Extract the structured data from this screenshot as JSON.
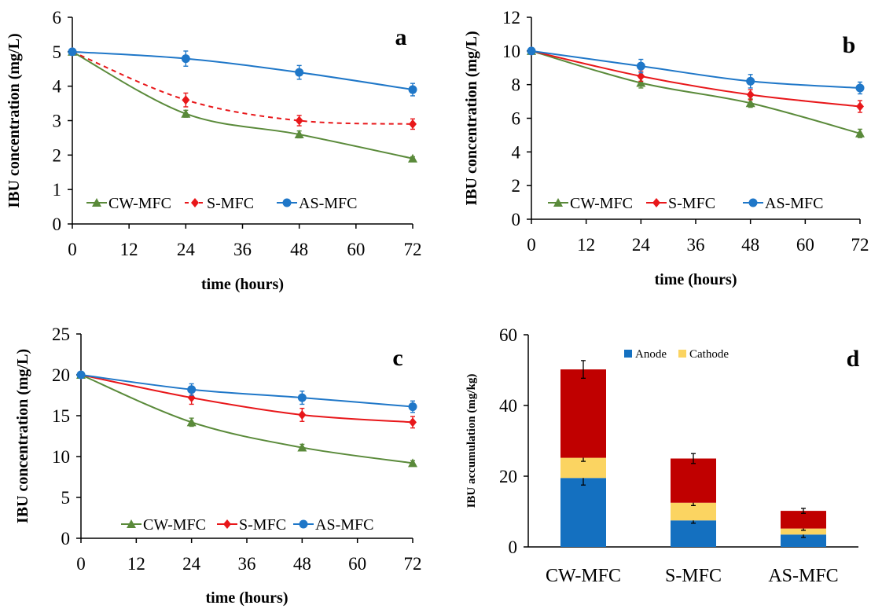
{
  "colors": {
    "cw": "#5a8a3a",
    "s": "#e8171a",
    "as": "#1f77c8",
    "anode": "#1470c0",
    "cathode": "#fbd461",
    "top_segment": "#c00000",
    "axis": "#000000"
  },
  "chart_data": [
    {
      "panel": "a",
      "type": "line",
      "xlabel": "time (hours)",
      "ylabel": "IBU concentration (mg/L)",
      "x": [
        0,
        24,
        48,
        72
      ],
      "xticks": [
        "0",
        "12",
        "24",
        "36",
        "48",
        "60",
        "72"
      ],
      "xlim": [
        0,
        72
      ],
      "yticks": [
        "0",
        "1",
        "2",
        "3",
        "4",
        "5",
        "6"
      ],
      "ylim": [
        0,
        6
      ],
      "grid": false,
      "legend_position": "bottom-left",
      "series": [
        {
          "name": "CW-MFC",
          "marker": "triangle",
          "line": "solid",
          "values": [
            5.0,
            3.2,
            2.6,
            1.9
          ],
          "errors": [
            0,
            0.1,
            0.1,
            0.05
          ]
        },
        {
          "name": "S-MFC",
          "marker": "diamond",
          "line": "dashed",
          "values": [
            5.0,
            3.6,
            3.0,
            2.9
          ],
          "errors": [
            0,
            0.2,
            0.15,
            0.15
          ]
        },
        {
          "name": "AS-MFC",
          "marker": "circle",
          "line": "solid",
          "values": [
            5.0,
            4.8,
            4.4,
            3.9
          ],
          "errors": [
            0,
            0.22,
            0.2,
            0.18
          ]
        }
      ]
    },
    {
      "panel": "b",
      "type": "line",
      "xlabel": "time (hours)",
      "ylabel": "IBU concentration (mg/L)",
      "x": [
        0,
        24,
        48,
        72
      ],
      "xticks": [
        "0",
        "12",
        "24",
        "36",
        "48",
        "60",
        "72"
      ],
      "xlim": [
        0,
        72
      ],
      "yticks": [
        "0",
        "2",
        "4",
        "6",
        "8",
        "10",
        "12"
      ],
      "ylim": [
        0,
        12
      ],
      "grid": false,
      "legend_position": "bottom-left",
      "series": [
        {
          "name": "CW-MFC",
          "marker": "triangle",
          "line": "solid",
          "values": [
            10.0,
            8.1,
            6.9,
            5.1
          ],
          "errors": [
            0,
            0.3,
            0.25,
            0.25
          ]
        },
        {
          "name": "S-MFC",
          "marker": "diamond",
          "line": "solid",
          "values": [
            10.0,
            8.5,
            7.4,
            6.7
          ],
          "errors": [
            0,
            0.3,
            0.3,
            0.35
          ]
        },
        {
          "name": "AS-MFC",
          "marker": "circle",
          "line": "solid",
          "values": [
            10.0,
            9.1,
            8.2,
            7.8
          ],
          "errors": [
            0,
            0.4,
            0.4,
            0.35
          ]
        }
      ]
    },
    {
      "panel": "c",
      "type": "line",
      "xlabel": "time (hours)",
      "ylabel": "IBU concentration (mg/L)",
      "x": [
        0,
        24,
        48,
        72
      ],
      "xticks": [
        "0",
        "12",
        "24",
        "36",
        "48",
        "60",
        "72"
      ],
      "xlim": [
        0,
        72
      ],
      "yticks": [
        "0",
        "5",
        "10",
        "15",
        "20",
        "25"
      ],
      "ylim": [
        0,
        25
      ],
      "grid": false,
      "legend_position": "bottom",
      "series": [
        {
          "name": "CW-MFC",
          "marker": "triangle",
          "line": "solid",
          "values": [
            20.0,
            14.2,
            11.1,
            9.2
          ],
          "errors": [
            0,
            0.5,
            0.4,
            0.3
          ]
        },
        {
          "name": "S-MFC",
          "marker": "diamond",
          "line": "solid",
          "values": [
            20.0,
            17.2,
            15.1,
            14.2
          ],
          "errors": [
            0,
            0.8,
            0.8,
            0.7
          ]
        },
        {
          "name": "AS-MFC",
          "marker": "circle",
          "line": "solid",
          "values": [
            20.0,
            18.2,
            17.2,
            16.1
          ],
          "errors": [
            0,
            0.7,
            0.8,
            0.7
          ]
        }
      ]
    },
    {
      "panel": "d",
      "type": "bar",
      "stacked": true,
      "xlabel": "",
      "ylabel": "IBU accumulation (mg/kg)",
      "categories": [
        "CW-MFC",
        "S-MFC",
        "AS-MFC"
      ],
      "yticks": [
        "0",
        "20",
        "40",
        "60"
      ],
      "ylim": [
        0,
        60
      ],
      "grid": false,
      "legend_position": "top",
      "series": [
        {
          "name": "Anode",
          "values": [
            19.5,
            7.5,
            3.5
          ],
          "errors": [
            2.0,
            0.8,
            0.8
          ]
        },
        {
          "name": "Cathode",
          "values": [
            5.7,
            5.0,
            1.7
          ],
          "errors": [
            1.0,
            0.8,
            0.5
          ]
        },
        {
          "name": "",
          "values": [
            25.0,
            12.5,
            5.0
          ],
          "errors": [
            2.5,
            1.4,
            0.7
          ]
        }
      ]
    }
  ]
}
